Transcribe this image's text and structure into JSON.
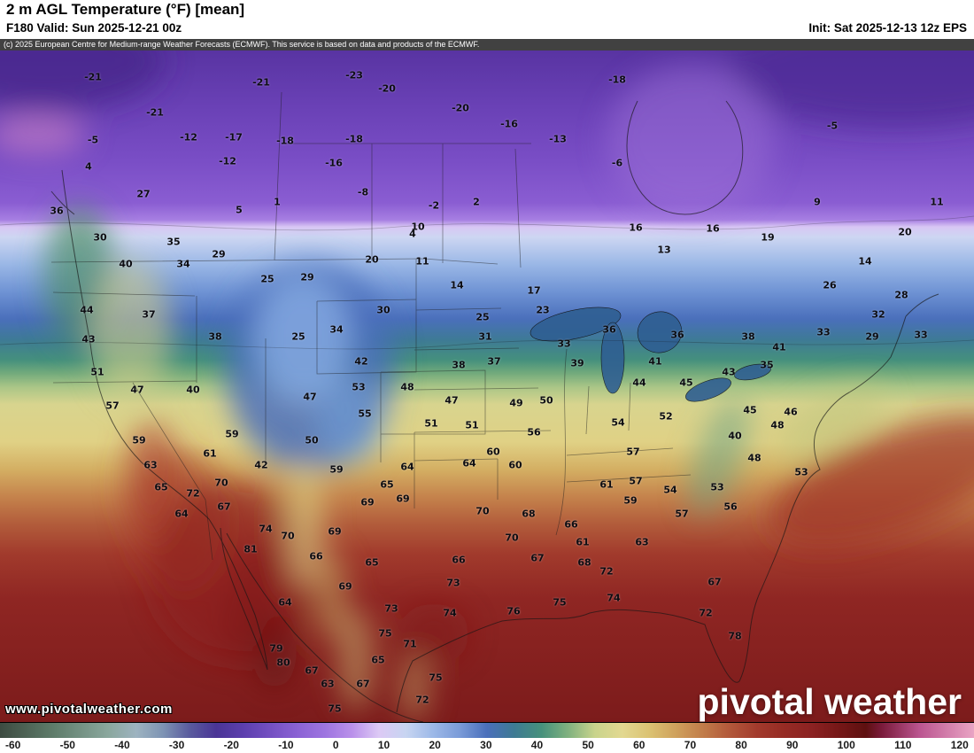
{
  "header": {
    "title": "2 m AGL Temperature (°F) [mean]",
    "valid_label": "F180 Valid: Sun 2025-12-21 00z",
    "init_label": "Init: Sat 2025-12-13 12z EPS"
  },
  "copyright": "(c) 2025 European Centre for Medium-range Weather Forecasts (ECMWF). This service is based on data and products of the ECMWF.",
  "watermark": "www.pivotalweather.com",
  "brand": "pivotal weather",
  "colorbar": {
    "units": "°F",
    "ticks": [
      "-60",
      "-50",
      "-40",
      "-30",
      "-20",
      "-10",
      "0",
      "10",
      "20",
      "30",
      "40",
      "50",
      "60",
      "70",
      "80",
      "90",
      "100",
      "110",
      "120"
    ]
  },
  "chart_data": {
    "type": "heatmap",
    "title": "2 m AGL Temperature (°F) [mean]",
    "units": "°F",
    "scale_range": [
      -60,
      120
    ],
    "legend_position": "bottom",
    "station_values": [
      [
        105,
        87,
        "-21"
      ],
      [
        295,
        93,
        "-21"
      ],
      [
        400,
        85,
        "-23"
      ],
      [
        437,
        100,
        "-20"
      ],
      [
        697,
        90,
        "-18"
      ],
      [
        175,
        127,
        "-21"
      ],
      [
        520,
        122,
        "-20"
      ],
      [
        575,
        140,
        "-16"
      ],
      [
        940,
        142,
        "-5"
      ],
      [
        105,
        158,
        "-5"
      ],
      [
        213,
        155,
        "-12"
      ],
      [
        264,
        155,
        "-17"
      ],
      [
        322,
        159,
        "-18"
      ],
      [
        400,
        157,
        "-18"
      ],
      [
        630,
        157,
        "-13"
      ],
      [
        100,
        188,
        "4"
      ],
      [
        257,
        182,
        "-12"
      ],
      [
        377,
        184,
        "-16"
      ],
      [
        697,
        184,
        "-6"
      ],
      [
        162,
        219,
        "27"
      ],
      [
        313,
        228,
        "1"
      ],
      [
        410,
        217,
        "-8"
      ],
      [
        490,
        232,
        "-2"
      ],
      [
        538,
        228,
        "2"
      ],
      [
        923,
        228,
        "9"
      ],
      [
        1058,
        228,
        "11"
      ],
      [
        64,
        238,
        "36"
      ],
      [
        270,
        237,
        "5"
      ],
      [
        113,
        268,
        "30"
      ],
      [
        196,
        273,
        "35"
      ],
      [
        247,
        287,
        "29"
      ],
      [
        472,
        256,
        "10"
      ],
      [
        466,
        264,
        "4"
      ],
      [
        718,
        257,
        "16"
      ],
      [
        805,
        258,
        "16"
      ],
      [
        867,
        268,
        "19"
      ],
      [
        1022,
        262,
        "20"
      ],
      [
        142,
        298,
        "40"
      ],
      [
        207,
        298,
        "34"
      ],
      [
        420,
        293,
        "20"
      ],
      [
        477,
        295,
        "11"
      ],
      [
        750,
        282,
        "13"
      ],
      [
        977,
        295,
        "14"
      ],
      [
        302,
        315,
        "25"
      ],
      [
        347,
        313,
        "29"
      ],
      [
        516,
        322,
        "14"
      ],
      [
        603,
        328,
        "17"
      ],
      [
        937,
        322,
        "26"
      ],
      [
        1018,
        333,
        "28"
      ],
      [
        98,
        350,
        "44"
      ],
      [
        168,
        355,
        "37"
      ],
      [
        433,
        350,
        "30"
      ],
      [
        545,
        358,
        "25"
      ],
      [
        613,
        350,
        "23"
      ],
      [
        992,
        355,
        "32"
      ],
      [
        100,
        383,
        "43"
      ],
      [
        243,
        380,
        "38"
      ],
      [
        337,
        380,
        "25"
      ],
      [
        380,
        372,
        "34"
      ],
      [
        548,
        380,
        "31"
      ],
      [
        637,
        388,
        "33"
      ],
      [
        688,
        372,
        "36"
      ],
      [
        765,
        378,
        "36"
      ],
      [
        845,
        380,
        "38"
      ],
      [
        930,
        375,
        "33"
      ],
      [
        985,
        380,
        "29"
      ],
      [
        1040,
        378,
        "33"
      ],
      [
        110,
        420,
        "51"
      ],
      [
        408,
        408,
        "42"
      ],
      [
        518,
        412,
        "38"
      ],
      [
        558,
        408,
        "37"
      ],
      [
        652,
        410,
        "39"
      ],
      [
        740,
        408,
        "41"
      ],
      [
        823,
        420,
        "43"
      ],
      [
        866,
        412,
        "35"
      ],
      [
        880,
        392,
        "41"
      ],
      [
        127,
        458,
        "57"
      ],
      [
        155,
        440,
        "47"
      ],
      [
        218,
        440,
        "40"
      ],
      [
        350,
        448,
        "47"
      ],
      [
        405,
        437,
        "53"
      ],
      [
        460,
        437,
        "48"
      ],
      [
        510,
        452,
        "47"
      ],
      [
        583,
        455,
        "49"
      ],
      [
        617,
        452,
        "50"
      ],
      [
        722,
        432,
        "44"
      ],
      [
        775,
        432,
        "45"
      ],
      [
        412,
        467,
        "55"
      ],
      [
        487,
        478,
        "51"
      ],
      [
        533,
        480,
        "51"
      ],
      [
        698,
        477,
        "54"
      ],
      [
        752,
        470,
        "52"
      ],
      [
        847,
        463,
        "45"
      ],
      [
        893,
        465,
        "46"
      ],
      [
        157,
        497,
        "59"
      ],
      [
        262,
        490,
        "59"
      ],
      [
        352,
        497,
        "50"
      ],
      [
        603,
        488,
        "56"
      ],
      [
        830,
        492,
        "40"
      ],
      [
        878,
        480,
        "48"
      ],
      [
        237,
        512,
        "61"
      ],
      [
        170,
        525,
        "63"
      ],
      [
        295,
        525,
        "42"
      ],
      [
        530,
        523,
        "64"
      ],
      [
        557,
        510,
        "60"
      ],
      [
        582,
        525,
        "60"
      ],
      [
        715,
        510,
        "57"
      ],
      [
        852,
        517,
        "48"
      ],
      [
        182,
        550,
        "65"
      ],
      [
        250,
        545,
        "70"
      ],
      [
        380,
        530,
        "59"
      ],
      [
        437,
        547,
        "65"
      ],
      [
        460,
        527,
        "64"
      ],
      [
        685,
        547,
        "61"
      ],
      [
        718,
        543,
        "57"
      ],
      [
        757,
        553,
        "54"
      ],
      [
        810,
        550,
        "53"
      ],
      [
        905,
        533,
        "53"
      ],
      [
        218,
        557,
        "72"
      ],
      [
        253,
        572,
        "67"
      ],
      [
        415,
        567,
        "69"
      ],
      [
        455,
        563,
        "69"
      ],
      [
        712,
        565,
        "59"
      ],
      [
        770,
        580,
        "57"
      ],
      [
        825,
        572,
        "56"
      ],
      [
        205,
        580,
        "64"
      ],
      [
        545,
        577,
        "70"
      ],
      [
        597,
        580,
        "68"
      ],
      [
        300,
        597,
        "74"
      ],
      [
        325,
        605,
        "70"
      ],
      [
        378,
        600,
        "69"
      ],
      [
        578,
        607,
        "70"
      ],
      [
        645,
        592,
        "66"
      ],
      [
        658,
        612,
        "61"
      ],
      [
        725,
        612,
        "63"
      ],
      [
        283,
        620,
        "81"
      ],
      [
        357,
        628,
        "66"
      ],
      [
        420,
        635,
        "65"
      ],
      [
        518,
        632,
        "66"
      ],
      [
        607,
        630,
        "67"
      ],
      [
        660,
        635,
        "68"
      ],
      [
        390,
        662,
        "69"
      ],
      [
        512,
        658,
        "73"
      ],
      [
        685,
        645,
        "72"
      ],
      [
        807,
        657,
        "67"
      ],
      [
        322,
        680,
        "64"
      ],
      [
        442,
        687,
        "73"
      ],
      [
        508,
        692,
        "74"
      ],
      [
        580,
        690,
        "76"
      ],
      [
        632,
        680,
        "75"
      ],
      [
        693,
        675,
        "74"
      ],
      [
        797,
        692,
        "72"
      ],
      [
        312,
        732,
        "79"
      ],
      [
        435,
        715,
        "75"
      ],
      [
        463,
        727,
        "71"
      ],
      [
        830,
        718,
        "78"
      ],
      [
        320,
        748,
        "80"
      ],
      [
        352,
        757,
        "67"
      ],
      [
        427,
        745,
        "65"
      ],
      [
        370,
        772,
        "63"
      ],
      [
        410,
        772,
        "67"
      ],
      [
        492,
        765,
        "75"
      ],
      [
        477,
        790,
        "72"
      ],
      [
        378,
        800,
        "75"
      ]
    ]
  },
  "colors": {
    "cold_purple": "#7450c2",
    "blue": "#4a6fbb",
    "teal": "#46917c",
    "yellow": "#d8d48e",
    "orange": "#c5834c",
    "red": "#a13a2c",
    "deep_red": "#7c1b1b"
  }
}
